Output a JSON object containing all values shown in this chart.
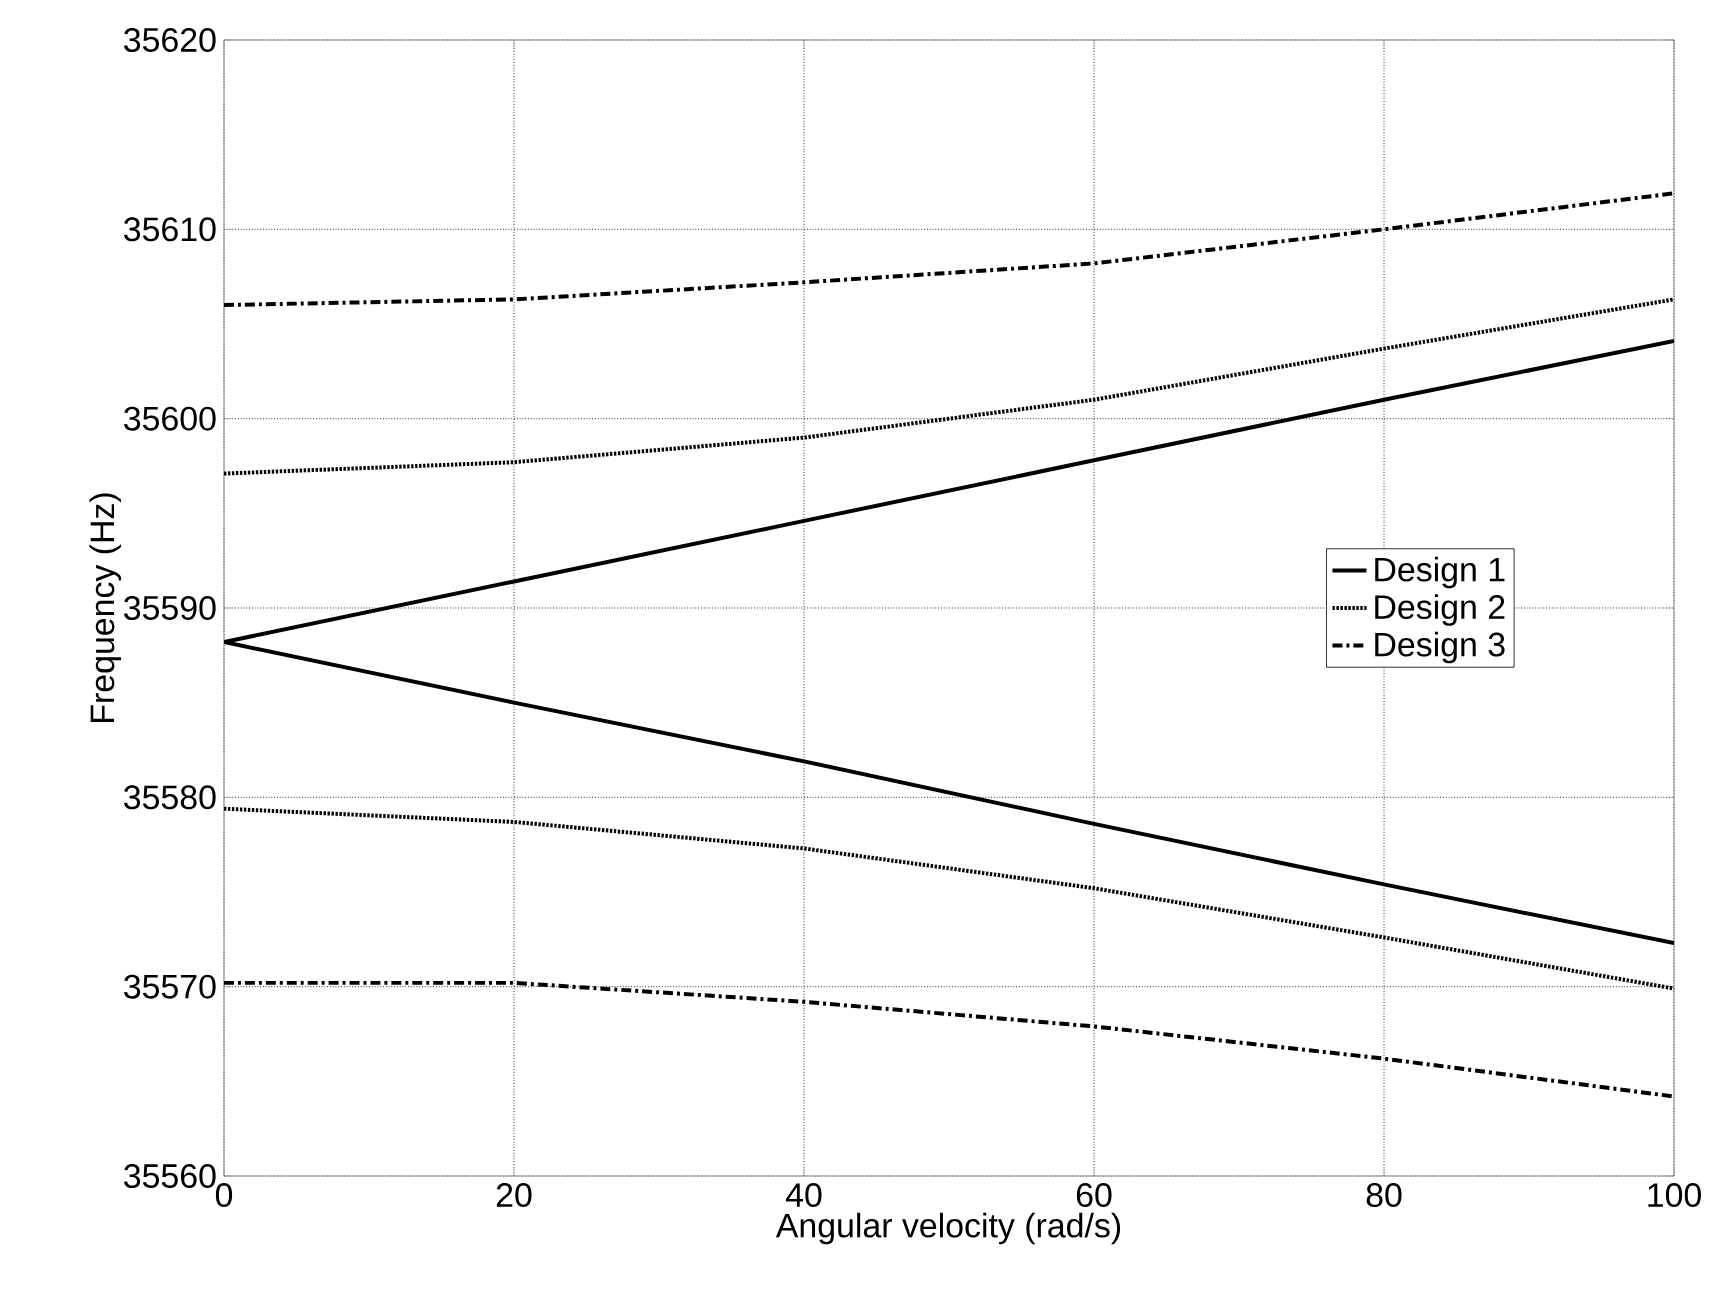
{
  "chart_data": {
    "type": "line",
    "xlabel": "Angular velocity (rad/s)",
    "ylabel": "Frequency (Hz)",
    "xlim": [
      0,
      100
    ],
    "ylim": [
      35560,
      35620
    ],
    "xticks": [
      0,
      20,
      40,
      60,
      80,
      100
    ],
    "yticks": [
      35560,
      35570,
      35580,
      35590,
      35600,
      35610,
      35620
    ],
    "grid": true,
    "legend": "right",
    "x": [
      0,
      20,
      40,
      60,
      80,
      100
    ],
    "series": [
      {
        "name": "Design 1",
        "color": "#000000",
        "line_style": "solid",
        "values": [
          35588.2,
          35591.4,
          35594.6,
          35597.8,
          35601.0,
          35604.1
        ]
      },
      {
        "color": "#000000",
        "line_style": "solid",
        "values": [
          35588.2,
          35585.0,
          35581.9,
          35578.6,
          35575.4,
          35572.3
        ]
      },
      {
        "name": "Design 2",
        "color": "#000000",
        "line_style": "dotted",
        "values": [
          35597.1,
          35597.7,
          35599.0,
          35601.0,
          35603.7,
          35606.3
        ]
      },
      {
        "color": "#000000",
        "line_style": "dotted",
        "values": [
          35579.4,
          35578.7,
          35577.3,
          35575.2,
          35572.6,
          35569.9
        ]
      },
      {
        "name": "Design 3",
        "color": "#000000",
        "line_style": "dashdot",
        "values": [
          35606.0,
          35606.3,
          35607.2,
          35608.2,
          35610.0,
          35611.9
        ]
      },
      {
        "color": "#000000",
        "line_style": "dashdot",
        "values": [
          35570.2,
          35570.2,
          35569.2,
          35567.9,
          35566.2,
          35564.2
        ]
      }
    ]
  }
}
